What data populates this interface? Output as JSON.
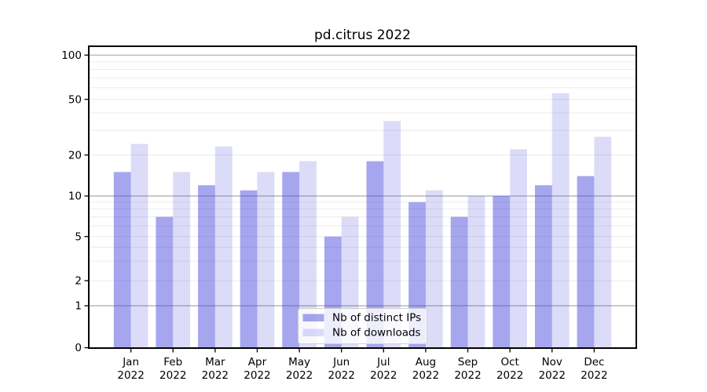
{
  "chart_data": {
    "type": "bar",
    "title": "pd.citrus 2022",
    "x_tick_months": [
      "Jan",
      "Feb",
      "Mar",
      "Apr",
      "May",
      "Jun",
      "Jul",
      "Aug",
      "Sep",
      "Oct",
      "Nov",
      "Dec"
    ],
    "x_tick_year": "2022",
    "series": [
      {
        "name": "Nb of distinct IPs",
        "values": [
          15,
          7,
          12,
          11,
          15,
          5,
          18,
          9,
          7,
          10,
          12,
          14
        ],
        "color": "rgba(60,60,220,0.46)"
      },
      {
        "name": "Nb of downloads",
        "values": [
          24,
          15,
          23,
          15,
          18,
          7,
          35,
          11,
          10,
          22,
          55,
          27
        ],
        "color": "rgba(60,60,220,0.18)"
      }
    ],
    "yscale": "symlog",
    "yticks": [
      0,
      1,
      2,
      5,
      10,
      20,
      50,
      100
    ],
    "ylim": [
      0,
      116
    ],
    "xlabel": "",
    "ylabel": "",
    "grid": {
      "major_values": [
        1,
        10,
        100
      ],
      "minor_values": [
        2,
        3,
        4,
        5,
        6,
        7,
        8,
        9,
        20,
        30,
        40,
        50,
        60,
        70,
        80,
        90
      ]
    },
    "legend": {
      "position": "lower center",
      "entries": [
        "Nb of distinct IPs",
        "Nb of downloads"
      ]
    }
  },
  "colors": {
    "background": "#ffffff",
    "spine": "#000000",
    "major_grid": "#ababab",
    "minor_grid": "#ebebeb",
    "tick_text": "#000000",
    "legend_bg": "rgba(255,255,255,0.8)",
    "legend_border": "#d2d2d2"
  }
}
